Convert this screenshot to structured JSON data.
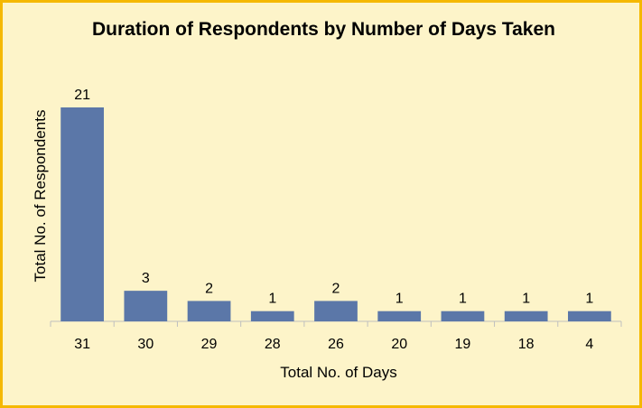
{
  "chart_data": {
    "type": "bar",
    "title": "Duration of Respondents by Number of Days Taken",
    "xlabel": "Total No. of Days",
    "ylabel": "Total No. of Respondents",
    "categories": [
      "31",
      "30",
      "29",
      "28",
      "26",
      "20",
      "19",
      "18",
      "4"
    ],
    "values": [
      21,
      3,
      2,
      1,
      2,
      1,
      1,
      1,
      1
    ],
    "data_labels": [
      "21",
      "3",
      "2",
      "1",
      "2",
      "1",
      "1",
      "1",
      "1"
    ],
    "ylim": [
      0,
      21
    ],
    "grid": false,
    "legend": "none",
    "colors": {
      "bar": "#5b77a8",
      "background": "#fdf4c9",
      "border": "#f5b800",
      "axis": "#bfbfbf"
    }
  }
}
